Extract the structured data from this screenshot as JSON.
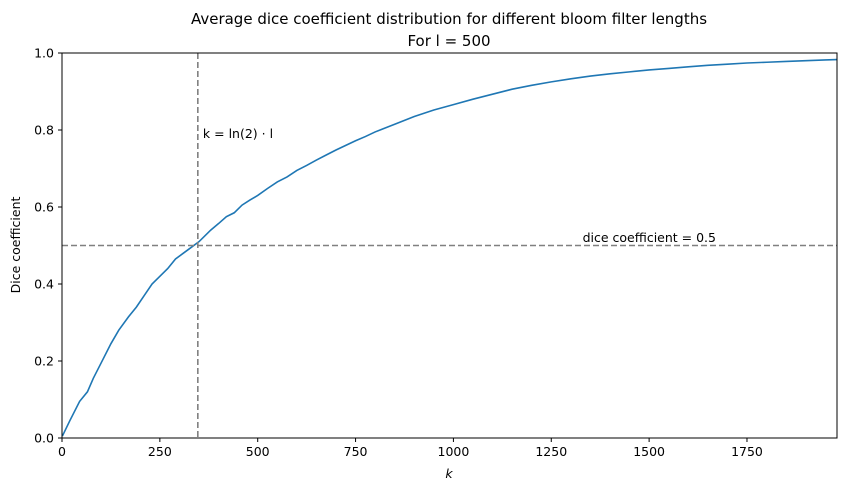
{
  "chart_data": {
    "type": "line",
    "title": "Average dice coefficient distribution for different bloom filter lengths",
    "subtitle": "For l = 500",
    "xlabel": "k",
    "ylabel": "Dice coefficient",
    "xlim": [
      0,
      1980
    ],
    "ylim": [
      0,
      1.0
    ],
    "x_ticks": [
      0,
      250,
      500,
      750,
      1000,
      1250,
      1500,
      1750
    ],
    "y_ticks": [
      0.0,
      0.2,
      0.4,
      0.6,
      0.8,
      1.0
    ],
    "x_tick_labels": [
      "0",
      "250",
      "500",
      "750",
      "1000",
      "1250",
      "1500",
      "1750"
    ],
    "y_tick_labels": [
      "0.0",
      "0.2",
      "0.4",
      "0.6",
      "0.8",
      "1.0"
    ],
    "grid": false,
    "series": [
      {
        "color": "#1f77b4",
        "x": [
          1,
          20,
          45,
          65,
          80,
          100,
          125,
          145,
          170,
          190,
          210,
          230,
          250,
          270,
          290,
          310,
          330,
          350,
          380,
          400,
          420,
          440,
          460,
          480,
          500,
          525,
          550,
          575,
          600,
          625,
          650,
          675,
          700,
          725,
          750,
          775,
          800,
          850,
          900,
          950,
          1000,
          1050,
          1100,
          1150,
          1200,
          1250,
          1300,
          1350,
          1400,
          1450,
          1500,
          1550,
          1600,
          1650,
          1700,
          1750,
          1800,
          1850,
          1900,
          1950,
          1980
        ],
        "y": [
          0.005,
          0.045,
          0.095,
          0.12,
          0.155,
          0.195,
          0.245,
          0.28,
          0.315,
          0.34,
          0.37,
          0.4,
          0.42,
          0.44,
          0.465,
          0.48,
          0.495,
          0.51,
          0.54,
          0.557,
          0.575,
          0.585,
          0.605,
          0.618,
          0.63,
          0.648,
          0.665,
          0.678,
          0.695,
          0.708,
          0.722,
          0.735,
          0.748,
          0.76,
          0.772,
          0.783,
          0.795,
          0.815,
          0.835,
          0.852,
          0.866,
          0.88,
          0.893,
          0.906,
          0.916,
          0.925,
          0.933,
          0.94,
          0.946,
          0.951,
          0.956,
          0.96,
          0.964,
          0.968,
          0.971,
          0.974,
          0.976,
          0.978,
          0.98,
          0.982,
          0.983
        ]
      }
    ],
    "reference_lines": [
      {
        "orientation": "vertical",
        "value": 347,
        "style": "dashed",
        "color": "#808080"
      },
      {
        "orientation": "horizontal",
        "value": 0.5,
        "style": "dashed",
        "color": "#808080"
      }
    ],
    "annotations": [
      {
        "text": "k = ln(2) · l",
        "x": 360,
        "y": 0.79
      },
      {
        "text": "dice coefficient = 0.5",
        "x": 1330,
        "y": 0.52
      }
    ]
  }
}
